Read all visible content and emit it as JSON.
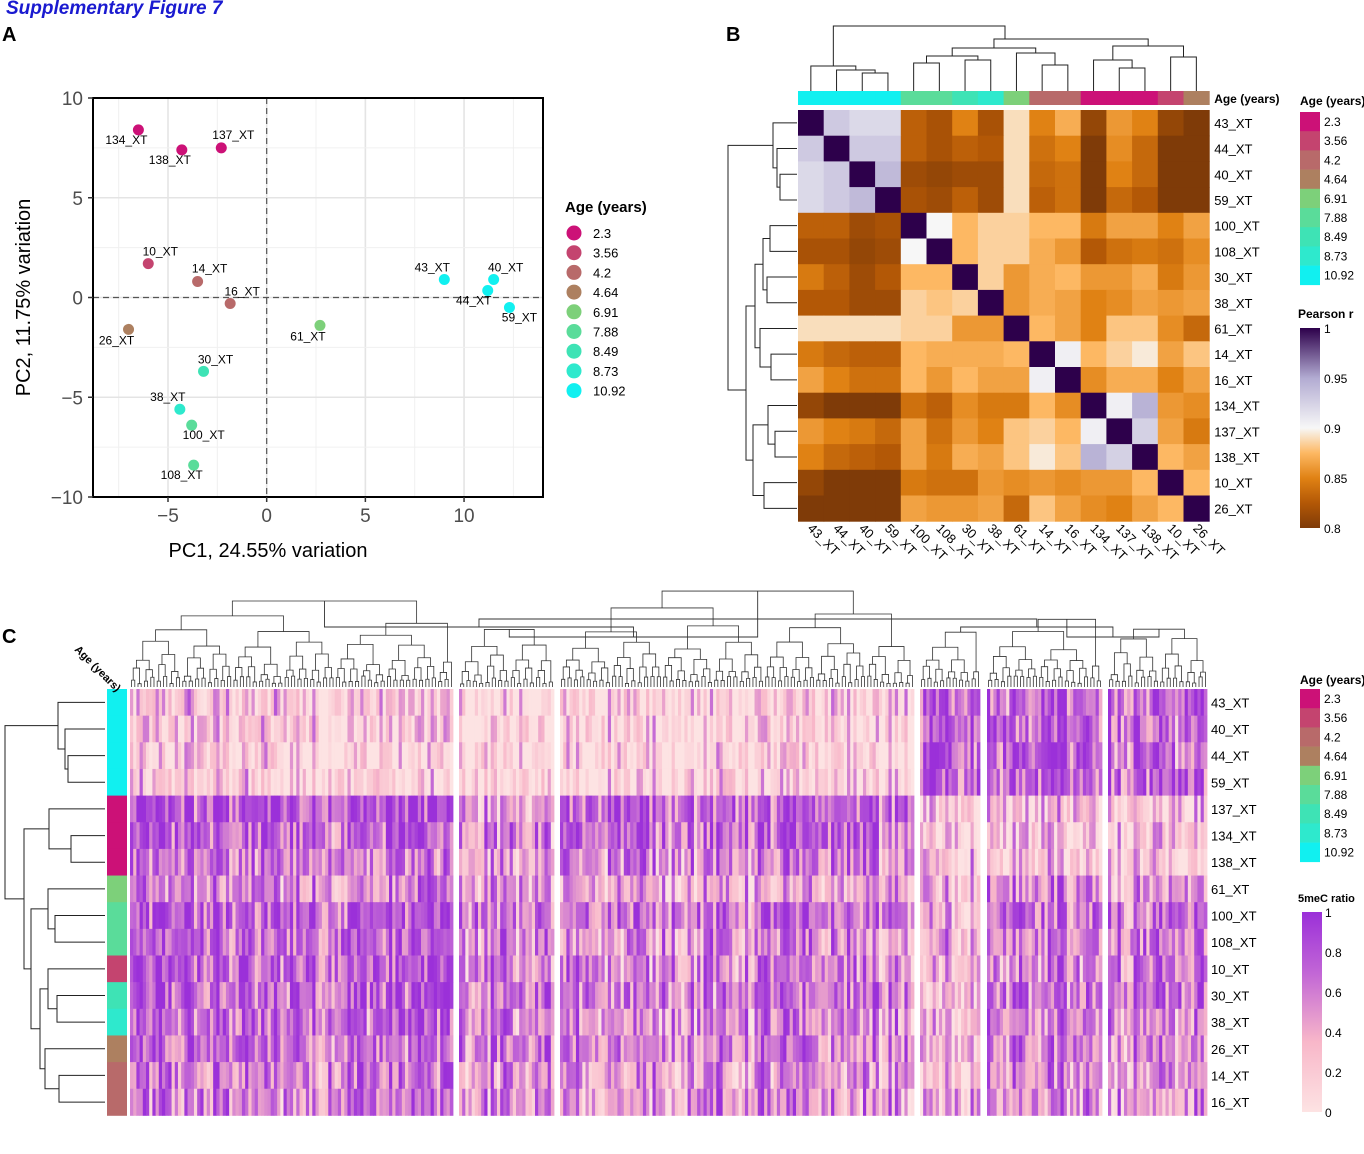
{
  "figure": {
    "title": "Supplementary Figure 7",
    "panel_labels": [
      "A",
      "B",
      "C"
    ]
  },
  "age_palette": {
    "levels": [
      "2.3",
      "3.56",
      "4.2",
      "4.64",
      "6.91",
      "7.88",
      "8.49",
      "8.73",
      "10.92"
    ],
    "colors": [
      "#cc1177",
      "#c4446f",
      "#b86a6a",
      "#ad8060",
      "#7dd07a",
      "#5adc9a",
      "#3ee3b5",
      "#2ee9cd",
      "#11f0f0"
    ]
  },
  "chart_data": [
    {
      "id": "A",
      "type": "scatter",
      "title": "",
      "xlabel": "PC1, 24.55% variation",
      "ylabel": "PC2, 11.75% variation",
      "xlim": [
        -8.8,
        14
      ],
      "ylim": [
        -10,
        10
      ],
      "xticks": [
        -5,
        0,
        5,
        10
      ],
      "xtick_labels": [
        "−5",
        "0",
        "5",
        "10"
      ],
      "yticks": [
        -10,
        -5,
        0,
        5,
        10
      ],
      "ytick_labels": [
        "−10",
        "−5",
        "0",
        "5",
        "10"
      ],
      "grid": true,
      "reference_lines": {
        "x": 0,
        "y": 0,
        "style": "dashed"
      },
      "legend": {
        "title": "Age (years)",
        "placement": "right"
      },
      "points": [
        {
          "label": "134_XT",
          "x": -6.5,
          "y": 8.4,
          "age": "2.3"
        },
        {
          "label": "138_XT",
          "x": -4.3,
          "y": 7.4,
          "age": "2.3"
        },
        {
          "label": "137_XT",
          "x": -2.3,
          "y": 7.5,
          "age": "2.3"
        },
        {
          "label": "10_XT",
          "x": -6.0,
          "y": 1.7,
          "age": "3.56"
        },
        {
          "label": "14_XT",
          "x": -3.5,
          "y": 0.8,
          "age": "4.2"
        },
        {
          "label": "16_XT",
          "x": -1.85,
          "y": -0.3,
          "age": "4.2"
        },
        {
          "label": "26_XT",
          "x": -7.0,
          "y": -1.6,
          "age": "4.64"
        },
        {
          "label": "61_XT",
          "x": 2.7,
          "y": -1.4,
          "age": "6.91"
        },
        {
          "label": "30_XT",
          "x": -3.2,
          "y": -3.7,
          "age": "8.49"
        },
        {
          "label": "38_XT",
          "x": -4.4,
          "y": -5.6,
          "age": "8.73"
        },
        {
          "label": "100_XT",
          "x": -3.8,
          "y": -6.4,
          "age": "7.88"
        },
        {
          "label": "108_XT",
          "x": -3.7,
          "y": -8.4,
          "age": "7.88"
        },
        {
          "label": "43_XT",
          "x": 9.0,
          "y": 0.9,
          "age": "10.92"
        },
        {
          "label": "40_XT",
          "x": 11.5,
          "y": 0.9,
          "age": "10.92"
        },
        {
          "label": "44_XT",
          "x": 11.2,
          "y": 0.35,
          "age": "10.92"
        },
        {
          "label": "59_XT",
          "x": 12.3,
          "y": -0.5,
          "age": "10.92"
        }
      ]
    },
    {
      "id": "B",
      "type": "heatmap",
      "title": "",
      "row_labels": [
        "43_XT",
        "44_XT",
        "40_XT",
        "59_XT",
        "100_XT",
        "108_XT",
        "30_XT",
        "38_XT",
        "61_XT",
        "14_XT",
        "16_XT",
        "134_XT",
        "137_XT",
        "138_XT",
        "10_XT",
        "26_XT"
      ],
      "col_labels": [
        "43_XT",
        "44_XT",
        "40_XT",
        "59_XT",
        "100_XT",
        "108_XT",
        "30_XT",
        "38_XT",
        "61_XT",
        "14_XT",
        "16_XT",
        "134_XT",
        "137_XT",
        "138_XT",
        "10_XT",
        "26_XT"
      ],
      "col_annotation_title": "Age (years)",
      "col_annotation": [
        "10.92",
        "10.92",
        "10.92",
        "10.92",
        "7.88",
        "7.88",
        "8.49",
        "8.73",
        "6.91",
        "4.2",
        "4.2",
        "2.3",
        "2.3",
        "2.3",
        "3.56",
        "4.64"
      ],
      "legend_age": {
        "title": "Age (years)"
      },
      "legend_value": {
        "title": "Pearson r",
        "min": 0.8,
        "max": 1,
        "ticks": [
          1,
          0.95,
          0.9,
          0.85,
          0.8
        ]
      },
      "colorscale": [
        [
          0.8,
          "#7f3b08"
        ],
        [
          0.825,
          "#b35806"
        ],
        [
          0.85,
          "#e08214"
        ],
        [
          0.875,
          "#fdb863"
        ],
        [
          0.9,
          "#f7f7f7"
        ],
        [
          0.95,
          "#b2abd2"
        ],
        [
          1.0,
          "#2d004b"
        ]
      ],
      "values": [
        [
          1.0,
          0.93,
          0.92,
          0.92,
          0.83,
          0.82,
          0.85,
          0.82,
          0.89,
          0.85,
          0.87,
          0.81,
          0.86,
          0.85,
          0.81,
          0.8
        ],
        [
          0.93,
          1.0,
          0.93,
          0.93,
          0.83,
          0.82,
          0.83,
          0.825,
          0.89,
          0.84,
          0.85,
          0.8,
          0.855,
          0.835,
          0.8,
          0.8
        ],
        [
          0.92,
          0.93,
          1.0,
          0.94,
          0.815,
          0.81,
          0.815,
          0.815,
          0.89,
          0.835,
          0.84,
          0.8,
          0.85,
          0.835,
          0.8,
          0.8
        ],
        [
          0.92,
          0.93,
          0.94,
          1.0,
          0.82,
          0.815,
          0.83,
          0.815,
          0.89,
          0.83,
          0.84,
          0.8,
          0.835,
          0.825,
          0.8,
          0.8
        ],
        [
          0.83,
          0.83,
          0.815,
          0.82,
          1.0,
          0.9,
          0.875,
          0.885,
          0.885,
          0.875,
          0.875,
          0.845,
          0.865,
          0.865,
          0.85,
          0.865
        ],
        [
          0.82,
          0.82,
          0.81,
          0.815,
          0.9,
          1.0,
          0.875,
          0.885,
          0.885,
          0.87,
          0.86,
          0.825,
          0.84,
          0.845,
          0.84,
          0.855
        ],
        [
          0.845,
          0.83,
          0.815,
          0.825,
          0.875,
          0.875,
          1.0,
          0.885,
          0.86,
          0.87,
          0.875,
          0.86,
          0.86,
          0.87,
          0.845,
          0.86
        ],
        [
          0.825,
          0.825,
          0.815,
          0.815,
          0.885,
          0.88,
          0.885,
          1.0,
          0.86,
          0.87,
          0.865,
          0.85,
          0.855,
          0.865,
          0.86,
          0.865
        ],
        [
          0.89,
          0.89,
          0.89,
          0.89,
          0.885,
          0.885,
          0.86,
          0.86,
          1.0,
          0.875,
          0.865,
          0.85,
          0.88,
          0.88,
          0.855,
          0.835
        ],
        [
          0.845,
          0.835,
          0.83,
          0.83,
          0.875,
          0.87,
          0.87,
          0.87,
          0.875,
          1.0,
          0.905,
          0.875,
          0.885,
          0.895,
          0.865,
          0.88
        ],
        [
          0.865,
          0.85,
          0.84,
          0.84,
          0.875,
          0.86,
          0.875,
          0.865,
          0.865,
          0.905,
          1.0,
          0.855,
          0.87,
          0.87,
          0.85,
          0.865
        ],
        [
          0.81,
          0.8,
          0.8,
          0.8,
          0.84,
          0.83,
          0.855,
          0.845,
          0.845,
          0.875,
          0.855,
          1.0,
          0.905,
          0.945,
          0.86,
          0.855
        ],
        [
          0.86,
          0.85,
          0.845,
          0.835,
          0.865,
          0.84,
          0.86,
          0.85,
          0.88,
          0.885,
          0.875,
          0.905,
          1.0,
          0.925,
          0.865,
          0.845
        ],
        [
          0.85,
          0.835,
          0.83,
          0.825,
          0.865,
          0.845,
          0.87,
          0.865,
          0.88,
          0.895,
          0.88,
          0.945,
          0.925,
          1.0,
          0.875,
          0.865
        ],
        [
          0.81,
          0.8,
          0.8,
          0.8,
          0.845,
          0.84,
          0.84,
          0.86,
          0.855,
          0.86,
          0.855,
          0.86,
          0.86,
          0.875,
          1.0,
          0.875
        ],
        [
          0.8,
          0.8,
          0.8,
          0.8,
          0.865,
          0.86,
          0.86,
          0.865,
          0.835,
          0.88,
          0.865,
          0.855,
          0.85,
          0.865,
          0.875,
          1.0
        ]
      ]
    },
    {
      "id": "C",
      "type": "heatmap",
      "title": "",
      "row_labels": [
        "43_XT",
        "40_XT",
        "44_XT",
        "59_XT",
        "137_XT",
        "134_XT",
        "138_XT",
        "61_XT",
        "100_XT",
        "108_XT",
        "10_XT",
        "30_XT",
        "38_XT",
        "26_XT",
        "14_XT",
        "16_XT"
      ],
      "row_annotation_title": "Age (years)",
      "row_annotation": [
        "10.92",
        "10.92",
        "10.92",
        "10.92",
        "2.3",
        "2.3",
        "2.3",
        "6.91",
        "7.88",
        "7.88",
        "3.56",
        "8.49",
        "8.73",
        "4.64",
        "4.2",
        "4.2"
      ],
      "column_description": "CpG sites clustered into 6 column blocks separated by gaps",
      "column_blocks": [
        "block1",
        "block2",
        "block3",
        "block4",
        "block5",
        "block6"
      ],
      "block_mean_values": [
        [
          0.25,
          0.08,
          0.12,
          0.75,
          0.7,
          0.75
        ],
        [
          0.2,
          0.08,
          0.1,
          0.8,
          0.75,
          0.7
        ],
        [
          0.15,
          0.06,
          0.08,
          0.8,
          0.8,
          0.65
        ],
        [
          0.15,
          0.05,
          0.08,
          0.75,
          0.75,
          0.75
        ],
        [
          0.8,
          0.45,
          0.75,
          0.3,
          0.35,
          0.25
        ],
        [
          0.7,
          0.55,
          0.7,
          0.25,
          0.3,
          0.25
        ],
        [
          0.65,
          0.45,
          0.6,
          0.3,
          0.25,
          0.2
        ],
        [
          0.55,
          0.45,
          0.4,
          0.45,
          0.6,
          0.5
        ],
        [
          0.75,
          0.7,
          0.65,
          0.4,
          0.7,
          0.65
        ],
        [
          0.7,
          0.55,
          0.5,
          0.5,
          0.65,
          0.6
        ],
        [
          0.75,
          0.55,
          0.55,
          0.35,
          0.55,
          0.65
        ],
        [
          0.75,
          0.6,
          0.6,
          0.35,
          0.65,
          0.7
        ],
        [
          0.7,
          0.55,
          0.55,
          0.4,
          0.6,
          0.55
        ],
        [
          0.65,
          0.65,
          0.6,
          0.45,
          0.65,
          0.55
        ],
        [
          0.6,
          0.45,
          0.45,
          0.3,
          0.55,
          0.55
        ],
        [
          0.6,
          0.5,
          0.5,
          0.45,
          0.55,
          0.5
        ]
      ],
      "legend_age": {
        "title": "Age (years)"
      },
      "legend_value": {
        "title": "5meC ratio",
        "min": 0,
        "max": 1,
        "ticks": [
          1,
          0.8,
          0.6,
          0.4,
          0.2,
          0
        ]
      },
      "colorscale": [
        [
          0,
          "#fde3e3"
        ],
        [
          0.35,
          "#f8b7c9"
        ],
        [
          0.7,
          "#c165d6"
        ],
        [
          1,
          "#9b30d9"
        ]
      ],
      "row_axis_title": "Age (years)"
    }
  ]
}
